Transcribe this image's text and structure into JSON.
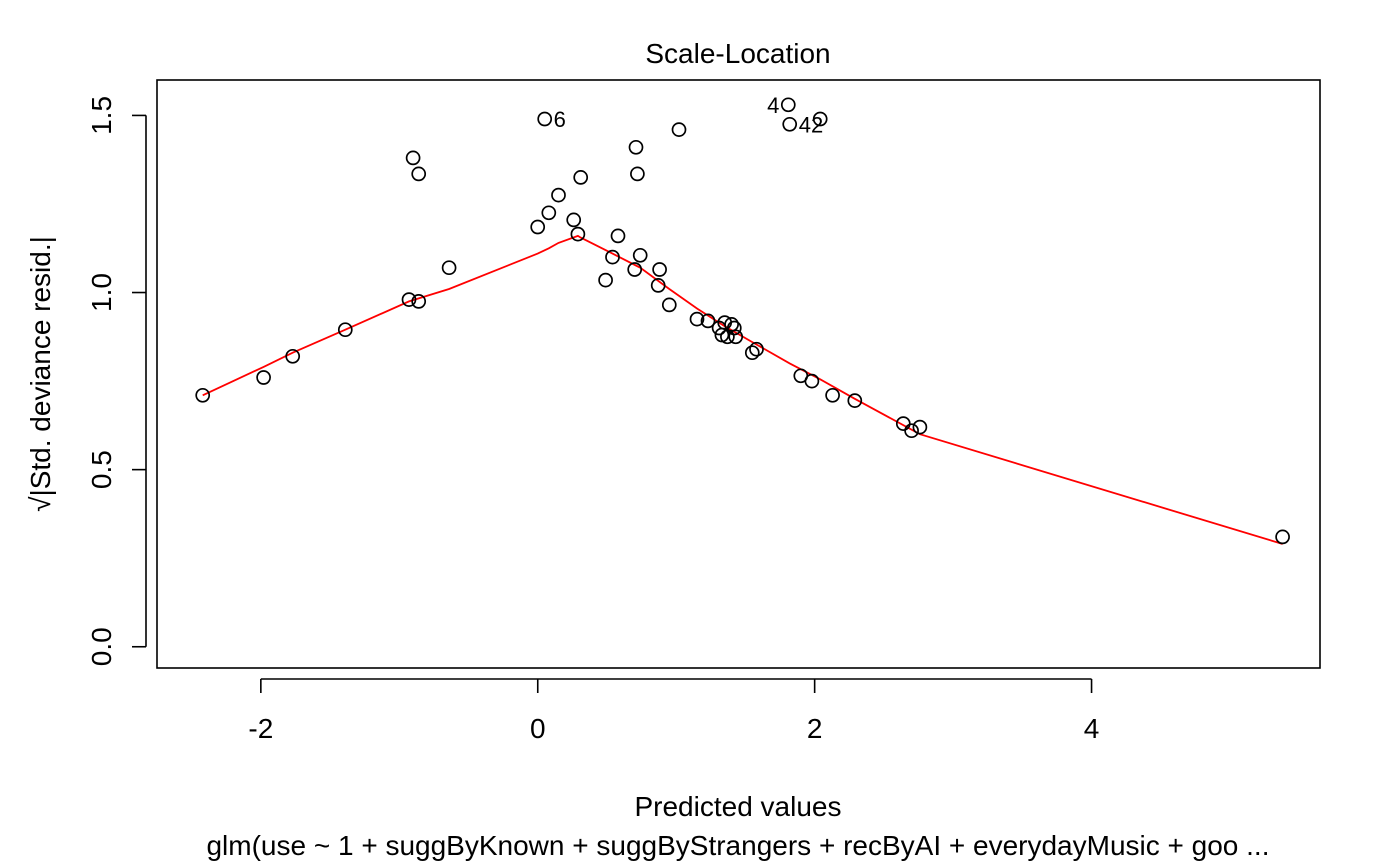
{
  "chart_data": {
    "type": "scatter",
    "title": "Scale-Location",
    "xlabel": "Predicted values",
    "ylabel": "√|Std. deviance resid.|",
    "subtitle": "glm(use ~ 1 + suggByKnown + suggByStrangers + recByAI + everydayMusic + goo ...",
    "xlim": [
      -2.75,
      5.65
    ],
    "ylim": [
      -0.06,
      1.6
    ],
    "x_ticks": [
      -2,
      0,
      2,
      4
    ],
    "y_ticks": [
      0.0,
      0.5,
      1.0,
      1.5
    ],
    "x_tick_labels": [
      "-2",
      "0",
      "2",
      "4"
    ],
    "y_tick_labels": [
      "0.0",
      "0.5",
      "1.0",
      "1.5"
    ],
    "grid": false,
    "legend": "none",
    "point_color": "#000000",
    "smooth_color": "#ff0000",
    "points": [
      {
        "x": -2.42,
        "y": 0.71
      },
      {
        "x": -1.98,
        "y": 0.76
      },
      {
        "x": -1.77,
        "y": 0.82
      },
      {
        "x": -1.39,
        "y": 0.895
      },
      {
        "x": -0.93,
        "y": 0.98
      },
      {
        "x": -0.86,
        "y": 0.975
      },
      {
        "x": -0.9,
        "y": 1.38
      },
      {
        "x": -0.86,
        "y": 1.335
      },
      {
        "x": -0.64,
        "y": 1.07
      },
      {
        "x": 0.0,
        "y": 1.185
      },
      {
        "x": 0.05,
        "y": 1.49
      },
      {
        "x": 0.08,
        "y": 1.225
      },
      {
        "x": 0.15,
        "y": 1.275
      },
      {
        "x": 0.26,
        "y": 1.205
      },
      {
        "x": 0.29,
        "y": 1.165
      },
      {
        "x": 0.31,
        "y": 1.325
      },
      {
        "x": 0.49,
        "y": 1.035
      },
      {
        "x": 0.54,
        "y": 1.1
      },
      {
        "x": 0.58,
        "y": 1.16
      },
      {
        "x": 0.7,
        "y": 1.065
      },
      {
        "x": 0.71,
        "y": 1.41
      },
      {
        "x": 0.72,
        "y": 1.335
      },
      {
        "x": 0.74,
        "y": 1.105
      },
      {
        "x": 0.87,
        "y": 1.02
      },
      {
        "x": 0.88,
        "y": 1.065
      },
      {
        "x": 0.95,
        "y": 0.965
      },
      {
        "x": 1.02,
        "y": 1.46
      },
      {
        "x": 1.15,
        "y": 0.925
      },
      {
        "x": 1.23,
        "y": 0.92
      },
      {
        "x": 1.31,
        "y": 0.9
      },
      {
        "x": 1.33,
        "y": 0.88
      },
      {
        "x": 1.35,
        "y": 0.915
      },
      {
        "x": 1.37,
        "y": 0.875
      },
      {
        "x": 1.4,
        "y": 0.91
      },
      {
        "x": 1.42,
        "y": 0.9
      },
      {
        "x": 1.43,
        "y": 0.875
      },
      {
        "x": 1.55,
        "y": 0.83
      },
      {
        "x": 1.58,
        "y": 0.84
      },
      {
        "x": 1.81,
        "y": 1.53
      },
      {
        "x": 1.82,
        "y": 1.475
      },
      {
        "x": 1.9,
        "y": 0.765
      },
      {
        "x": 1.98,
        "y": 0.75
      },
      {
        "x": 2.04,
        "y": 1.49
      },
      {
        "x": 2.13,
        "y": 0.71
      },
      {
        "x": 2.29,
        "y": 0.695
      },
      {
        "x": 2.64,
        "y": 0.63
      },
      {
        "x": 2.7,
        "y": 0.61
      },
      {
        "x": 2.76,
        "y": 0.62
      },
      {
        "x": 5.38,
        "y": 0.31
      }
    ],
    "smooth_line": [
      {
        "x": -2.42,
        "y": 0.71
      },
      {
        "x": -1.98,
        "y": 0.79
      },
      {
        "x": -1.77,
        "y": 0.83
      },
      {
        "x": -1.39,
        "y": 0.895
      },
      {
        "x": -0.93,
        "y": 0.975
      },
      {
        "x": -0.64,
        "y": 1.01
      },
      {
        "x": 0.0,
        "y": 1.11
      },
      {
        "x": 0.08,
        "y": 1.125
      },
      {
        "x": 0.15,
        "y": 1.14
      },
      {
        "x": 0.29,
        "y": 1.16
      },
      {
        "x": 0.31,
        "y": 1.155
      },
      {
        "x": 0.54,
        "y": 1.11
      },
      {
        "x": 0.74,
        "y": 1.07
      },
      {
        "x": 0.95,
        "y": 1.01
      },
      {
        "x": 1.15,
        "y": 0.955
      },
      {
        "x": 1.35,
        "y": 0.905
      },
      {
        "x": 1.55,
        "y": 0.86
      },
      {
        "x": 1.82,
        "y": 0.8
      },
      {
        "x": 2.04,
        "y": 0.755
      },
      {
        "x": 2.29,
        "y": 0.7
      },
      {
        "x": 2.76,
        "y": 0.6
      },
      {
        "x": 5.38,
        "y": 0.29
      }
    ],
    "annotations": [
      {
        "text": "6",
        "x": 0.05,
        "y": 1.49,
        "pos": "right"
      },
      {
        "text": "4",
        "x": 1.81,
        "y": 1.53,
        "pos": "left"
      },
      {
        "text": "42",
        "x": 1.82,
        "y": 1.475,
        "pos": "right"
      }
    ]
  }
}
